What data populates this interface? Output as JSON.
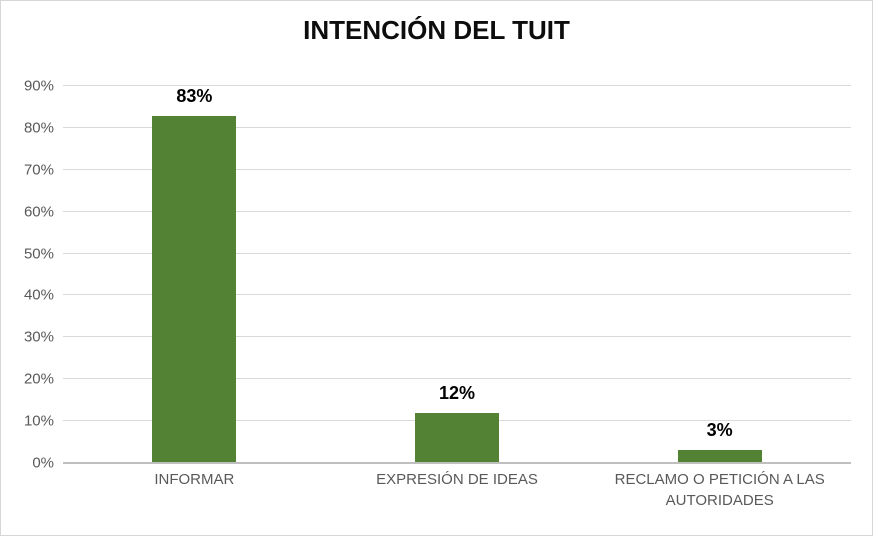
{
  "chart_data": {
    "type": "bar",
    "title": "INTENCIÓN DEL TUIT",
    "categories": [
      "INFORMAR",
      "EXPRESIÓN DE IDEAS",
      "RECLAMO O PETICIÓN A LAS AUTORIDADES"
    ],
    "values": [
      83,
      12,
      3
    ],
    "data_labels": [
      "83%",
      "12%",
      "3%"
    ],
    "y_ticks": [
      "0%",
      "10%",
      "20%",
      "30%",
      "40%",
      "50%",
      "60%",
      "70%",
      "80%",
      "90%"
    ],
    "y_tick_values": [
      0,
      10,
      20,
      30,
      40,
      50,
      60,
      70,
      80,
      90
    ],
    "ylim": [
      0,
      90
    ],
    "xlabel": "",
    "ylabel": "",
    "grid": true,
    "legend": "none",
    "colors": {
      "bar": "#548235",
      "title_text": "#0d0d0d",
      "axis_text": "#595959",
      "gridline": "#d9d9d9",
      "axis_line": "#bfbfbf",
      "background": "#ffffff",
      "border": "#d6d6d6"
    }
  }
}
